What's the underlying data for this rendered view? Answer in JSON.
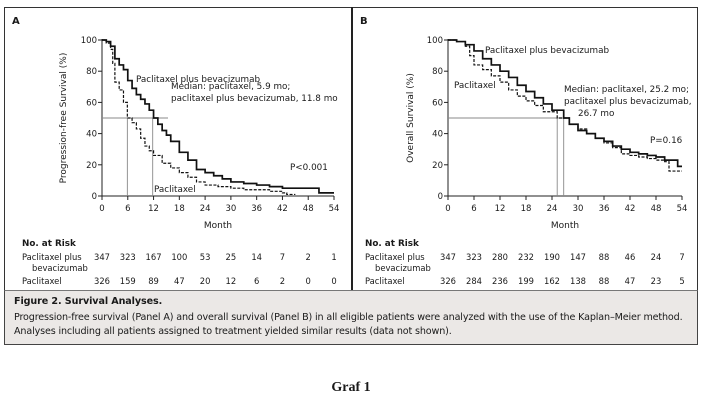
{
  "figure": {
    "caption_title": "Figure 2. Survival Analyses.",
    "caption_body": "Progression-free survival (Panel A) and overall survival (Panel B) in all eligible patients were analyzed with the use of the Kaplan–Meier method. Analyses including all patients assigned to treatment yielded similar results (data not shown).",
    "graf_label": "Graf 1"
  },
  "chart_data": [
    {
      "panel": "A",
      "type": "line",
      "title": "",
      "xlabel": "Month",
      "ylabel": "Progression-free Survival (%)",
      "xlim": [
        0,
        54
      ],
      "ylim": [
        0,
        100
      ],
      "xticks": [
        0,
        6,
        12,
        18,
        24,
        30,
        36,
        42,
        48,
        54
      ],
      "yticks": [
        0,
        20,
        40,
        60,
        80,
        100
      ],
      "grid": false,
      "median_line_y": 50,
      "medians": [
        5.9,
        11.8
      ],
      "annotations": {
        "series_label_1": "Paclitaxel plus bevacizumab",
        "series_label_2": "Paclitaxel",
        "median_line1": "Median: paclitaxel, 5.9 mo;",
        "median_line2": "paclitaxel plus bevacizumab, 11.8 mo",
        "pvalue": "P<0.001"
      },
      "series": [
        {
          "name": "Paclitaxel plus bevacizumab",
          "style": "solid",
          "x": [
            0,
            1,
            2,
            3,
            4,
            5,
            6,
            7,
            8,
            9,
            10,
            11,
            12,
            13,
            14,
            15,
            16,
            18,
            20,
            22,
            24,
            26,
            28,
            30,
            33,
            36,
            39,
            42,
            45,
            48,
            50,
            50.5,
            54
          ],
          "y": [
            100,
            99,
            96,
            88,
            84,
            81,
            74,
            69,
            65,
            62,
            59,
            55,
            50,
            46,
            42,
            39,
            35,
            28,
            23,
            17,
            15,
            13,
            11,
            9,
            8,
            7,
            6,
            5,
            5,
            5,
            5,
            2,
            2
          ]
        },
        {
          "name": "Paclitaxel",
          "style": "dashed",
          "x": [
            0,
            1,
            2,
            2.5,
            3,
            4,
            5,
            5.9,
            7,
            8,
            9,
            10,
            11,
            12,
            14,
            16,
            18,
            20,
            22,
            24,
            27,
            30,
            33,
            36,
            39,
            42,
            43,
            45
          ],
          "y": [
            100,
            98,
            94,
            85,
            73,
            68,
            60,
            50,
            47,
            43,
            37,
            32,
            29,
            26,
            21,
            18,
            15,
            12,
            9,
            7,
            6,
            5,
            4,
            4,
            3,
            2,
            1,
            1
          ]
        }
      ],
      "risk_table": {
        "header": "No. at Risk",
        "rows": [
          {
            "label_line1": "Paclitaxel plus",
            "label_line2": "bevacizumab",
            "values": [
              347,
              323,
              167,
              100,
              53,
              25,
              14,
              7,
              2,
              1
            ]
          },
          {
            "label_line1": "Paclitaxel",
            "label_line2": "",
            "values": [
              326,
              159,
              89,
              47,
              20,
              12,
              6,
              2,
              0,
              0
            ]
          }
        ]
      }
    },
    {
      "panel": "B",
      "type": "line",
      "title": "",
      "xlabel": "Month",
      "ylabel": "Overall Survival (%)",
      "xlim": [
        0,
        54
      ],
      "ylim": [
        0,
        100
      ],
      "xticks": [
        0,
        6,
        12,
        18,
        24,
        30,
        36,
        42,
        48,
        54
      ],
      "yticks": [
        0,
        20,
        40,
        60,
        80,
        100
      ],
      "grid": false,
      "median_line_y": 50,
      "medians": [
        25.2,
        26.7
      ],
      "annotations": {
        "series_label_1": "Paclitaxel plus bevacizumab",
        "series_label_2": "Paclitaxel",
        "median_line1": "Median: paclitaxel, 25.2 mo;",
        "median_line2": "paclitaxel plus bevacizumab,",
        "median_line3": "26.7 mo",
        "pvalue": "P=0.16"
      },
      "series": [
        {
          "name": "Paclitaxel plus bevacizumab",
          "style": "solid",
          "x": [
            0,
            2,
            4,
            6,
            8,
            10,
            12,
            14,
            16,
            18,
            20,
            22,
            24,
            26.7,
            28,
            30,
            32,
            34,
            36,
            38,
            40,
            42,
            44,
            46,
            48,
            50,
            52,
            53,
            54
          ],
          "y": [
            100,
            99,
            97,
            93,
            88,
            84,
            80,
            76,
            71,
            67,
            63,
            59,
            55,
            50,
            46,
            42,
            40,
            37,
            35,
            32,
            30,
            28,
            27,
            26,
            25,
            23,
            23,
            19,
            19
          ]
        },
        {
          "name": "Paclitaxel",
          "style": "dashed",
          "x": [
            0,
            2,
            4,
            5,
            6,
            8,
            10,
            12,
            14,
            16,
            18,
            20,
            22,
            25.2,
            28,
            30,
            32,
            34,
            36,
            38,
            40,
            42,
            44,
            46,
            48,
            50,
            51,
            52,
            54
          ],
          "y": [
            100,
            99,
            96,
            90,
            84,
            81,
            77,
            73,
            68,
            64,
            61,
            58,
            54,
            50,
            46,
            43,
            40,
            37,
            34,
            31,
            27,
            26,
            25,
            24,
            23,
            22,
            16,
            16,
            16
          ]
        }
      ],
      "risk_table": {
        "header": "No. at Risk",
        "rows": [
          {
            "label_line1": "Paclitaxel plus",
            "label_line2": "bevacizumab",
            "values": [
              347,
              323,
              280,
              232,
              190,
              147,
              88,
              46,
              24,
              7
            ]
          },
          {
            "label_line1": "Paclitaxel",
            "label_line2": "",
            "values": [
              326,
              284,
              236,
              199,
              162,
              138,
              88,
              47,
              23,
              5
            ]
          }
        ]
      }
    }
  ]
}
